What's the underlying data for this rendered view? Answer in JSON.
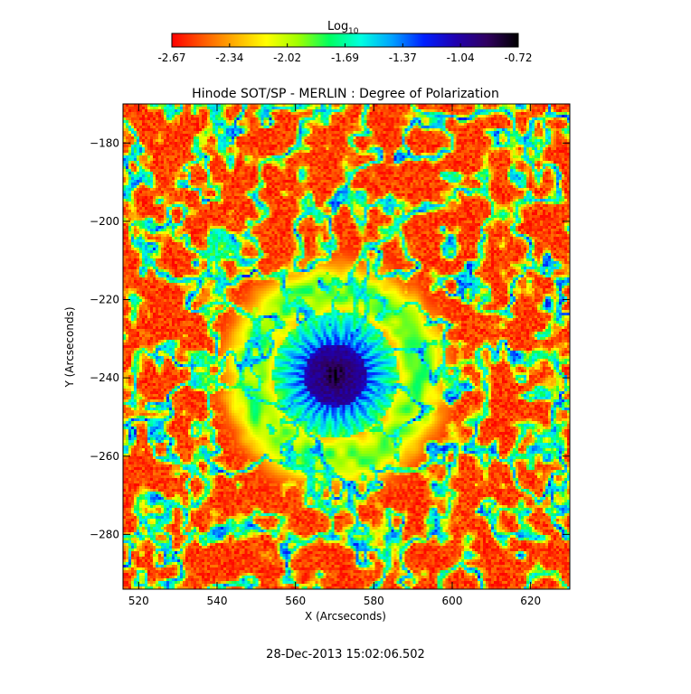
{
  "chart_data": {
    "type": "heatmap",
    "title": "Hinode SOT/SP - MERLIN : Degree of Polarization",
    "xlabel": "X (Arcseconds)",
    "ylabel": "Y (Arcseconds)",
    "xlim": [
      516,
      630
    ],
    "ylim": [
      -294,
      -170
    ],
    "x_ticks": [
      520,
      540,
      560,
      580,
      600,
      620
    ],
    "y_ticks": [
      -180,
      -200,
      -220,
      -240,
      -260,
      -280
    ],
    "colorbar": {
      "label_base": "Log",
      "label_sub": "10",
      "ticks": [
        "-2.67",
        "-2.34",
        "-2.02",
        "-1.69",
        "-1.37",
        "-1.04",
        "-0.72"
      ],
      "colors": [
        "#ff0000",
        "#ff5a00",
        "#ffb000",
        "#ffff00",
        "#a0ff00",
        "#00ff60",
        "#00ffe0",
        "#00a0ff",
        "#0020ff",
        "#2000b0",
        "#300060",
        "#000000"
      ]
    },
    "features": {
      "spot_center_x": 570,
      "spot_center_y": -239,
      "umbra_radius": 8,
      "penumbra_radius": 16
    }
  },
  "footer": {
    "timestamp": "28-Dec-2013 15:02:06.502"
  }
}
